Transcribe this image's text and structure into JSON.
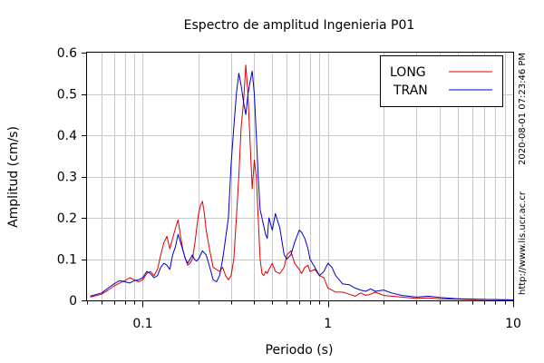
{
  "chart_data": {
    "type": "line",
    "title": "Espectro de amplitud Ingenieria P01",
    "xlabel": "Periodo (s)",
    "ylabel": "Amplitud (cm/s)",
    "x_scale": "log",
    "xlim": [
      0.05,
      10
    ],
    "ylim": [
      0,
      0.6
    ],
    "grid": true,
    "legend_position": "top-right",
    "x_ticks": [
      {
        "value": 0.1,
        "label": "0.1"
      },
      {
        "value": 1,
        "label": "1"
      },
      {
        "value": 10,
        "label": "10"
      }
    ],
    "y_ticks": [
      {
        "value": 0,
        "label": "0"
      },
      {
        "value": 0.1,
        "label": "0.1"
      },
      {
        "value": 0.2,
        "label": "0.2"
      },
      {
        "value": 0.3,
        "label": "0.3"
      },
      {
        "value": 0.4,
        "label": "0.4"
      },
      {
        "value": 0.5,
        "label": "0.5"
      },
      {
        "value": 0.6,
        "label": "0.6"
      }
    ],
    "series": [
      {
        "name": "LONG",
        "color": "#dd0000",
        "x": [
          0.052,
          0.06,
          0.065,
          0.07,
          0.075,
          0.08,
          0.085,
          0.09,
          0.095,
          0.1,
          0.105,
          0.11,
          0.115,
          0.12,
          0.125,
          0.13,
          0.135,
          0.14,
          0.145,
          0.15,
          0.155,
          0.16,
          0.165,
          0.17,
          0.175,
          0.18,
          0.185,
          0.19,
          0.195,
          0.2,
          0.205,
          0.21,
          0.215,
          0.22,
          0.23,
          0.24,
          0.25,
          0.26,
          0.27,
          0.28,
          0.29,
          0.3,
          0.31,
          0.32,
          0.33,
          0.34,
          0.35,
          0.36,
          0.37,
          0.375,
          0.38,
          0.39,
          0.4,
          0.41,
          0.42,
          0.43,
          0.44,
          0.45,
          0.46,
          0.47,
          0.48,
          0.5,
          0.52,
          0.55,
          0.58,
          0.6,
          0.63,
          0.66,
          0.7,
          0.72,
          0.75,
          0.78,
          0.8,
          0.85,
          0.9,
          0.95,
          1.0,
          1.05,
          1.1,
          1.2,
          1.3,
          1.4,
          1.5,
          1.6,
          1.7,
          1.8,
          2.0,
          2.2,
          2.5,
          3.0,
          3.5,
          4.0,
          5.0,
          6.0,
          8.0,
          10.0
        ],
        "y": [
          0.008,
          0.015,
          0.025,
          0.035,
          0.042,
          0.048,
          0.055,
          0.05,
          0.045,
          0.05,
          0.065,
          0.07,
          0.06,
          0.075,
          0.11,
          0.14,
          0.155,
          0.125,
          0.15,
          0.175,
          0.195,
          0.155,
          0.12,
          0.1,
          0.085,
          0.09,
          0.1,
          0.13,
          0.17,
          0.21,
          0.23,
          0.24,
          0.21,
          0.17,
          0.12,
          0.08,
          0.075,
          0.07,
          0.08,
          0.06,
          0.05,
          0.06,
          0.1,
          0.2,
          0.3,
          0.42,
          0.48,
          0.57,
          0.5,
          0.44,
          0.38,
          0.27,
          0.34,
          0.3,
          0.2,
          0.1,
          0.065,
          0.06,
          0.07,
          0.065,
          0.075,
          0.09,
          0.07,
          0.065,
          0.08,
          0.11,
          0.12,
          0.09,
          0.075,
          0.065,
          0.08,
          0.085,
          0.07,
          0.075,
          0.06,
          0.055,
          0.03,
          0.025,
          0.02,
          0.02,
          0.015,
          0.01,
          0.018,
          0.012,
          0.015,
          0.02,
          0.012,
          0.01,
          0.008,
          0.005,
          0.006,
          0.004,
          0.003,
          0.002,
          0.002,
          0.001
        ]
      },
      {
        "name": "TRAN",
        "color": "#0000cc",
        "x": [
          0.052,
          0.06,
          0.065,
          0.07,
          0.075,
          0.08,
          0.085,
          0.09,
          0.095,
          0.1,
          0.105,
          0.11,
          0.115,
          0.12,
          0.125,
          0.13,
          0.135,
          0.14,
          0.145,
          0.15,
          0.155,
          0.16,
          0.165,
          0.17,
          0.175,
          0.18,
          0.185,
          0.19,
          0.195,
          0.2,
          0.21,
          0.22,
          0.23,
          0.24,
          0.25,
          0.26,
          0.27,
          0.28,
          0.29,
          0.3,
          0.31,
          0.32,
          0.33,
          0.34,
          0.35,
          0.36,
          0.37,
          0.38,
          0.39,
          0.4,
          0.41,
          0.42,
          0.43,
          0.44,
          0.45,
          0.46,
          0.47,
          0.48,
          0.5,
          0.52,
          0.55,
          0.58,
          0.6,
          0.63,
          0.66,
          0.7,
          0.72,
          0.75,
          0.78,
          0.8,
          0.85,
          0.9,
          0.95,
          1.0,
          1.05,
          1.1,
          1.2,
          1.3,
          1.4,
          1.5,
          1.6,
          1.7,
          1.8,
          2.0,
          2.2,
          2.5,
          3.0,
          3.5,
          4.0,
          5.0,
          6.0,
          8.0,
          10.0
        ],
        "y": [
          0.01,
          0.018,
          0.03,
          0.04,
          0.048,
          0.045,
          0.042,
          0.048,
          0.05,
          0.055,
          0.07,
          0.065,
          0.055,
          0.06,
          0.08,
          0.09,
          0.085,
          0.075,
          0.11,
          0.13,
          0.16,
          0.14,
          0.12,
          0.1,
          0.09,
          0.1,
          0.11,
          0.1,
          0.095,
          0.1,
          0.12,
          0.11,
          0.08,
          0.05,
          0.045,
          0.06,
          0.1,
          0.15,
          0.2,
          0.33,
          0.42,
          0.5,
          0.55,
          0.52,
          0.48,
          0.45,
          0.5,
          0.53,
          0.555,
          0.5,
          0.4,
          0.3,
          0.22,
          0.2,
          0.18,
          0.16,
          0.15,
          0.2,
          0.17,
          0.21,
          0.175,
          0.11,
          0.1,
          0.11,
          0.14,
          0.17,
          0.165,
          0.15,
          0.125,
          0.1,
          0.08,
          0.06,
          0.07,
          0.09,
          0.08,
          0.06,
          0.04,
          0.038,
          0.03,
          0.025,
          0.022,
          0.028,
          0.022,
          0.025,
          0.018,
          0.012,
          0.008,
          0.01,
          0.007,
          0.004,
          0.003,
          0.002,
          0.001
        ]
      }
    ]
  },
  "side_annotations": {
    "url": "http://www.lis.ucr.ac.cr",
    "timestamp": "2020-08-01 07:23:46 PM"
  }
}
